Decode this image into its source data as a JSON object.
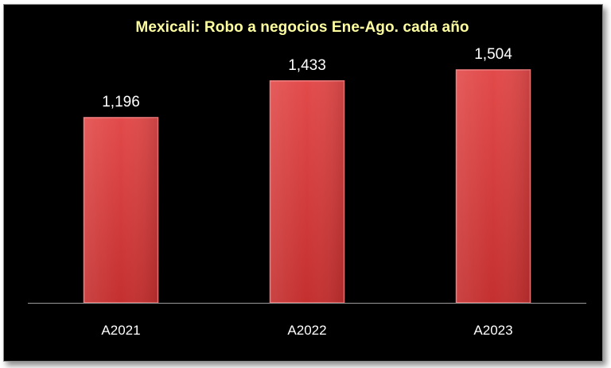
{
  "chart_data": {
    "type": "bar",
    "title": "Mexicali: Robo a negocios Ene-Ago. cada año",
    "categories": [
      "A2021",
      "A2022",
      "A2023"
    ],
    "values": [
      1196,
      1433,
      1504
    ],
    "data_labels": [
      "1,196",
      "1,433",
      "1,504"
    ],
    "ylim": [
      0,
      1750
    ],
    "grid": false,
    "legend": "none",
    "bar_color": "#e04848",
    "background_color": "#000000",
    "title_color": "#ffffa0",
    "label_color": "#ffffff"
  }
}
